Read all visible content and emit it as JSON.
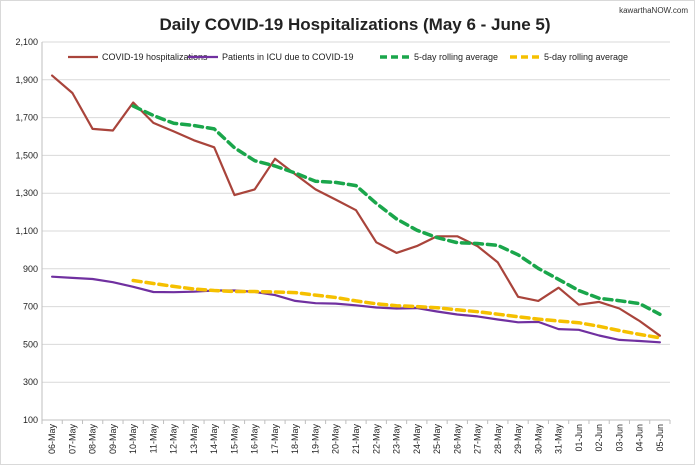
{
  "chart_data": {
    "type": "line",
    "title": "Daily COVID-19 Hospitalizations (May 6 - June 5)",
    "watermark": "kawarthaNOW.com",
    "xlabel": "",
    "ylabel": "",
    "ylim": [
      100,
      2100
    ],
    "yticks": [
      100,
      300,
      500,
      700,
      900,
      1100,
      1300,
      1500,
      1700,
      1900,
      2100
    ],
    "ytick_labels": [
      "100",
      "300",
      "500",
      "700",
      "900",
      "1,100",
      "1,300",
      "1,500",
      "1,700",
      "1,900",
      "2,100"
    ],
    "grid": true,
    "legend_position": "top",
    "categories": [
      "06-May",
      "07-May",
      "08-May",
      "09-May",
      "10-May",
      "11-May",
      "12-May",
      "13-May",
      "14-May",
      "15-May",
      "16-May",
      "17-May",
      "18-May",
      "19-May",
      "20-May",
      "21-May",
      "22-May",
      "23-May",
      "24-May",
      "25-May",
      "26-May",
      "27-May",
      "28-May",
      "29-May",
      "30-May",
      "31-May",
      "01-Jun",
      "02-Jun",
      "03-Jun",
      "04-Jun",
      "05-Jun"
    ],
    "series": [
      {
        "name": "COVID-19 hospitalizations",
        "color": "#a9443b",
        "style": "solid",
        "values": [
          1922,
          1830,
          1640,
          1632,
          1780,
          1672,
          1627,
          1580,
          1543,
          1290,
          1320,
          1482,
          1400,
          1320,
          1266,
          1210,
          1040,
          984,
          1020,
          1072,
          1072,
          1020,
          934,
          752,
          730,
          800,
          710,
          725,
          690,
          624,
          546
        ]
      },
      {
        "name": "Patients in ICU due to COVID-19",
        "color": "#7030a0",
        "style": "solid",
        "values": [
          858,
          852,
          846,
          829,
          805,
          777,
          776,
          779,
          785,
          785,
          778,
          761,
          730,
          718,
          716,
          707,
          695,
          690,
          692,
          674,
          658,
          648,
          632,
          617,
          619,
          581,
          577,
          547,
          524,
          518,
          511
        ]
      },
      {
        "name": "5-day rolling average",
        "color": "#1aa64b",
        "style": "dashed",
        "values": [
          null,
          null,
          null,
          null,
          1761,
          1711,
          1670,
          1658,
          1640,
          1540,
          1472,
          1444,
          1407,
          1363,
          1357,
          1340,
          1246,
          1164,
          1104,
          1065,
          1038,
          1034,
          1024,
          974,
          902,
          844,
          785,
          744,
          731,
          716,
          659
        ]
      },
      {
        "name": "5-day rolling average",
        "color": "#f5c000",
        "style": "dashed",
        "values": [
          null,
          null,
          null,
          null,
          838,
          822,
          807,
          793,
          785,
          780,
          780,
          777,
          774,
          761,
          748,
          730,
          715,
          705,
          700,
          694,
          683,
          673,
          660,
          646,
          634,
          624,
          615,
          596,
          573,
          553,
          535
        ]
      }
    ]
  }
}
